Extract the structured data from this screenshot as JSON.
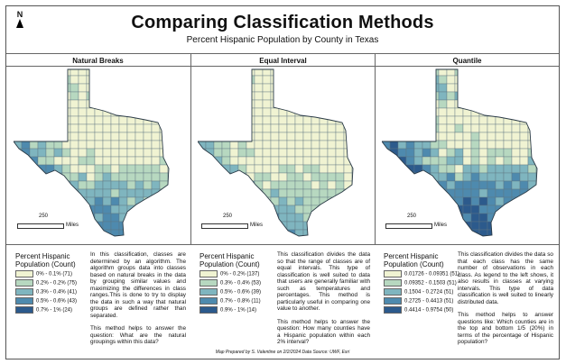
{
  "north_label": "N",
  "title": "Comparing Classification Methods",
  "subtitle": "Percent Hispanic Population by County in Texas",
  "colors": {
    "c1": "#f0f3d2",
    "c2": "#b7d8c0",
    "c3": "#7fb5bf",
    "c4": "#4e8aae",
    "c5": "#2c5a8c",
    "county_stroke": "#5f7480"
  },
  "panels": [
    {
      "title": "Natural Breaks",
      "scale_value": "250",
      "scale_unit": "Miles",
      "legend_title": "Percent Hispanic\nPopulation (Count)",
      "legend": [
        {
          "label": "0% - 0.1% (71)",
          "color": "#f0f3d2"
        },
        {
          "label": "0.2% - 0.2% (75)",
          "color": "#b7d8c0"
        },
        {
          "label": "0.3% - 0.4% (41)",
          "color": "#7fb5bf"
        },
        {
          "label": "0.5% - 0.6% (43)",
          "color": "#4e8aae"
        },
        {
          "label": "0.7% - 1% (24)",
          "color": "#2c5a8c"
        }
      ],
      "description": [
        "In this classification, classes are determined by an algorithm. The algorithm groups data into classes based on natural breaks in the data by grouping similar values and maximizing the differences in class ranges.This is done to try to display the data in such a way that natural groups are defined rather than separated.",
        "This method helps to answer the question: What are the natural groupings within this data?"
      ]
    },
    {
      "title": "Equal Interval",
      "scale_value": "250",
      "scale_unit": "Miles",
      "legend_title": "Percent Hispanic\nPopulation (Count)",
      "legend": [
        {
          "label": "0% - 0.2% (137)",
          "color": "#f0f3d2"
        },
        {
          "label": "0.3% - 0.4% (53)",
          "color": "#b7d8c0"
        },
        {
          "label": "0.5% - 0.6% (39)",
          "color": "#7fb5bf"
        },
        {
          "label": "0.7% - 0.8% (11)",
          "color": "#4e8aae"
        },
        {
          "label": "0.9% - 1% (14)",
          "color": "#2c5a8c"
        }
      ],
      "description": [
        "This classification divides the data so that the range of classes are of equal intervals. This type of classification is well suited to data that users are generally familiar with such as temperatures and percentages. This method is particularly useful in comparing one value to another.",
        "This method helps to answer the question: How many counties have a Hispanic population within each 2% interval?"
      ]
    },
    {
      "title": "Quantile",
      "scale_value": "250",
      "scale_unit": "Miles",
      "legend_title": "Percent Hispanic\nPopulation (Count)",
      "legend": [
        {
          "label": "0.01726 - 0.09351 (51)",
          "color": "#f0f3d2"
        },
        {
          "label": "0.09352 - 0.1503 (51)",
          "color": "#b7d8c0"
        },
        {
          "label": "0.1504 - 0.2724 (51)",
          "color": "#7fb5bf"
        },
        {
          "label": "0.2725 - 0.4413 (51)",
          "color": "#4e8aae"
        },
        {
          "label": "0.4414 - 0.9754 (50)",
          "color": "#2c5a8c"
        }
      ],
      "description": [
        "This classification divides the data so that each class has the same number of observations in each class. As legend to the left shows, it also results in classes at varying intervals. This type of data classification is well suited to linearly distributed data.",
        "This method helps to answer questions like: Which counties are in the top and bottom 1/5 (20%) in terms of the percentage of Hispanic population?"
      ]
    }
  ],
  "credit": "Map Prepared by S. Valentine on 2/2/2024 Data Source: UWF, Esri"
}
